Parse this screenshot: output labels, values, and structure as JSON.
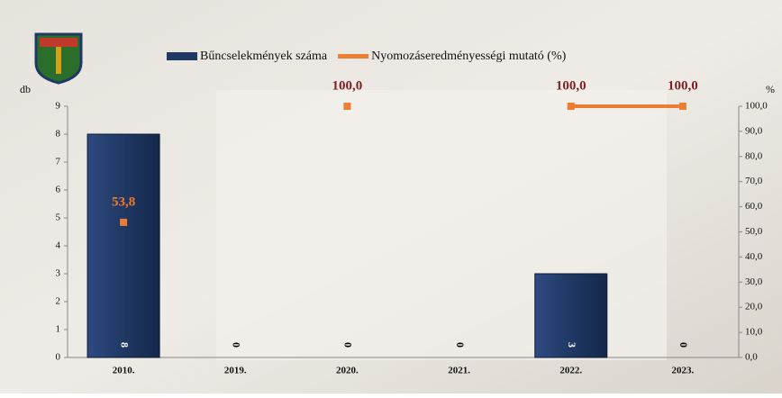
{
  "chart_data": {
    "type": "bar-line",
    "categories": [
      "2010.",
      "2019.",
      "2020.",
      "2021.",
      "2022.",
      "2023."
    ],
    "series": [
      {
        "name": "Bűncselekmények száma",
        "type": "bar",
        "color": "#1f3864",
        "values": [
          8,
          0,
          0,
          0,
          3,
          0
        ]
      },
      {
        "name": "Nyomozáseredményességi mutató (%)",
        "type": "line",
        "axis": "y2",
        "color": "#ed7d31",
        "values": [
          53.8,
          null,
          100,
          null,
          100,
          100
        ],
        "value_labels": [
          "53,8",
          null,
          "100,0",
          null,
          "100,0",
          "100,0"
        ]
      }
    ],
    "y_label": "db",
    "y2_label": "%",
    "ylim": [
      0,
      9
    ],
    "yticks": [
      0,
      1,
      2,
      3,
      4,
      5,
      6,
      7,
      8,
      9
    ],
    "y2lim": [
      0,
      100
    ],
    "y2ticks": [
      {
        "value": 0,
        "label": "0,0"
      },
      {
        "value": 10,
        "label": "10,0"
      },
      {
        "value": 20,
        "label": "20,0"
      },
      {
        "value": 30,
        "label": "30,0"
      },
      {
        "value": 40,
        "label": "40,0"
      },
      {
        "value": 50,
        "label": "50,0"
      },
      {
        "value": 60,
        "label": "60,0"
      },
      {
        "value": 70,
        "label": "70,0"
      },
      {
        "value": 80,
        "label": "80,0"
      },
      {
        "value": 90,
        "label": "90,0"
      },
      {
        "value": 100,
        "label": "100,0"
      }
    ]
  }
}
